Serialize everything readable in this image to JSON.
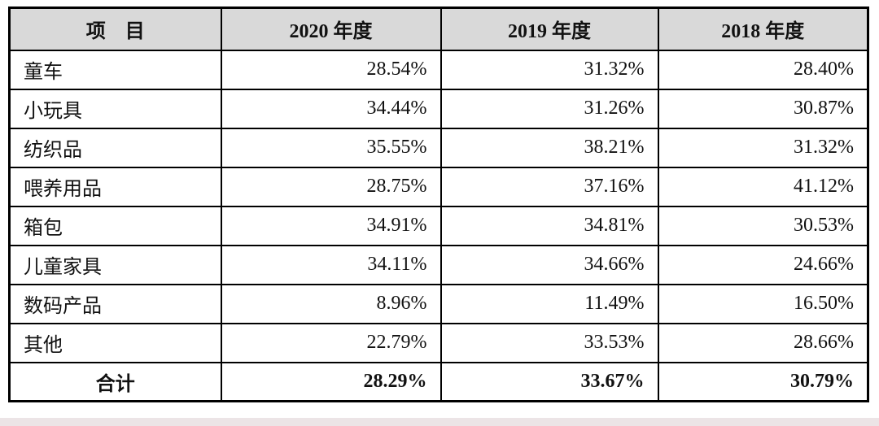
{
  "colors": {
    "header_bg": "#d9d9d9",
    "border": "#000000",
    "text": "#111111",
    "page_bg": "#ffffff",
    "footer_strip": "#ece4e6"
  },
  "table": {
    "headers": [
      "项　目",
      "2020 年度",
      "2019 年度",
      "2018 年度"
    ],
    "rows": [
      {
        "label": "童车",
        "values": [
          "28.54%",
          "31.32%",
          "28.40%"
        ]
      },
      {
        "label": "小玩具",
        "values": [
          "34.44%",
          "31.26%",
          "30.87%"
        ]
      },
      {
        "label": "纺织品",
        "values": [
          "35.55%",
          "38.21%",
          "31.32%"
        ]
      },
      {
        "label": "喂养用品",
        "values": [
          "28.75%",
          "37.16%",
          "41.12%"
        ]
      },
      {
        "label": "箱包",
        "values": [
          "34.91%",
          "34.81%",
          "30.53%"
        ]
      },
      {
        "label": "儿童家具",
        "values": [
          "34.11%",
          "34.66%",
          "24.66%"
        ]
      },
      {
        "label": "数码产品",
        "values": [
          "8.96%",
          "11.49%",
          "16.50%"
        ]
      },
      {
        "label": "其他",
        "values": [
          "22.79%",
          "33.53%",
          "28.66%"
        ]
      }
    ],
    "total": {
      "label": "合计",
      "values": [
        "28.29%",
        "33.67%",
        "30.79%"
      ]
    }
  }
}
